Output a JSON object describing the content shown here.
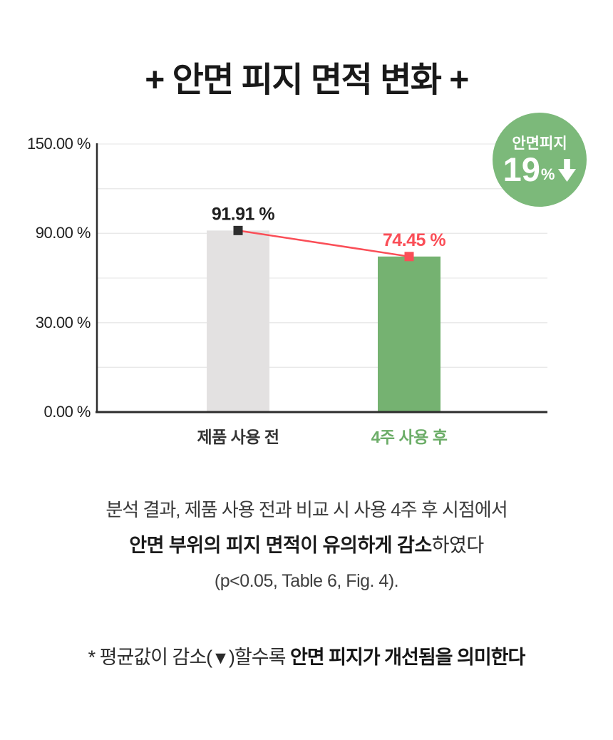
{
  "header": {
    "title": "+ 안면 피지 면적 변화 +"
  },
  "badge": {
    "label": "안면피지",
    "value": "19",
    "unit": "%",
    "direction": "down",
    "color": "#7cb97a",
    "text_color": "#ffffff"
  },
  "chart_data": {
    "type": "bar",
    "title": "안면 피지 면적 변화",
    "categories": [
      "제품 사용 전",
      "4주 사용 후"
    ],
    "values": [
      91.91,
      74.45
    ],
    "value_labels": [
      "91.91 %",
      "74.45 %"
    ],
    "value_label_colors": [
      "#1f1f1f",
      "#fa4e57"
    ],
    "category_colors": [
      "#333333",
      "#6cad68"
    ],
    "bar_colors": [
      "#e3e1e1",
      "#75b271"
    ],
    "marker_colors": [
      "#2e2e2e",
      "#fa4e57"
    ],
    "connector_color": "#fa4e57",
    "xlabel": "",
    "ylabel": "",
    "ylim": [
      0,
      150
    ],
    "yticks": [
      {
        "value": 150,
        "label": "150.00 %"
      },
      {
        "value": 90,
        "label": "90.00 %"
      },
      {
        "value": 30,
        "label": "30.00 %"
      },
      {
        "value": 0,
        "label": "0.00 %"
      }
    ],
    "grid": true,
    "gridline_color": "#e9e9e9",
    "axis_color": "#2d2d2d",
    "legend": "none"
  },
  "analysis": {
    "line1": "분석 결과, 제품 사용 전과 비교 시 사용 4주 후 시점에서",
    "line2_bold": "안면 부위의 피지 면적이 유의하게 감소",
    "line2_rest": "하였다",
    "line3": "(p<0.05, Table 6, Fig. 4)."
  },
  "footnote": {
    "prefix": "* 평균값이 감소(",
    "marker": "▼",
    "middle": ")할수록 ",
    "emphasis": "안면 피지가 개선됨을 의미한다"
  }
}
